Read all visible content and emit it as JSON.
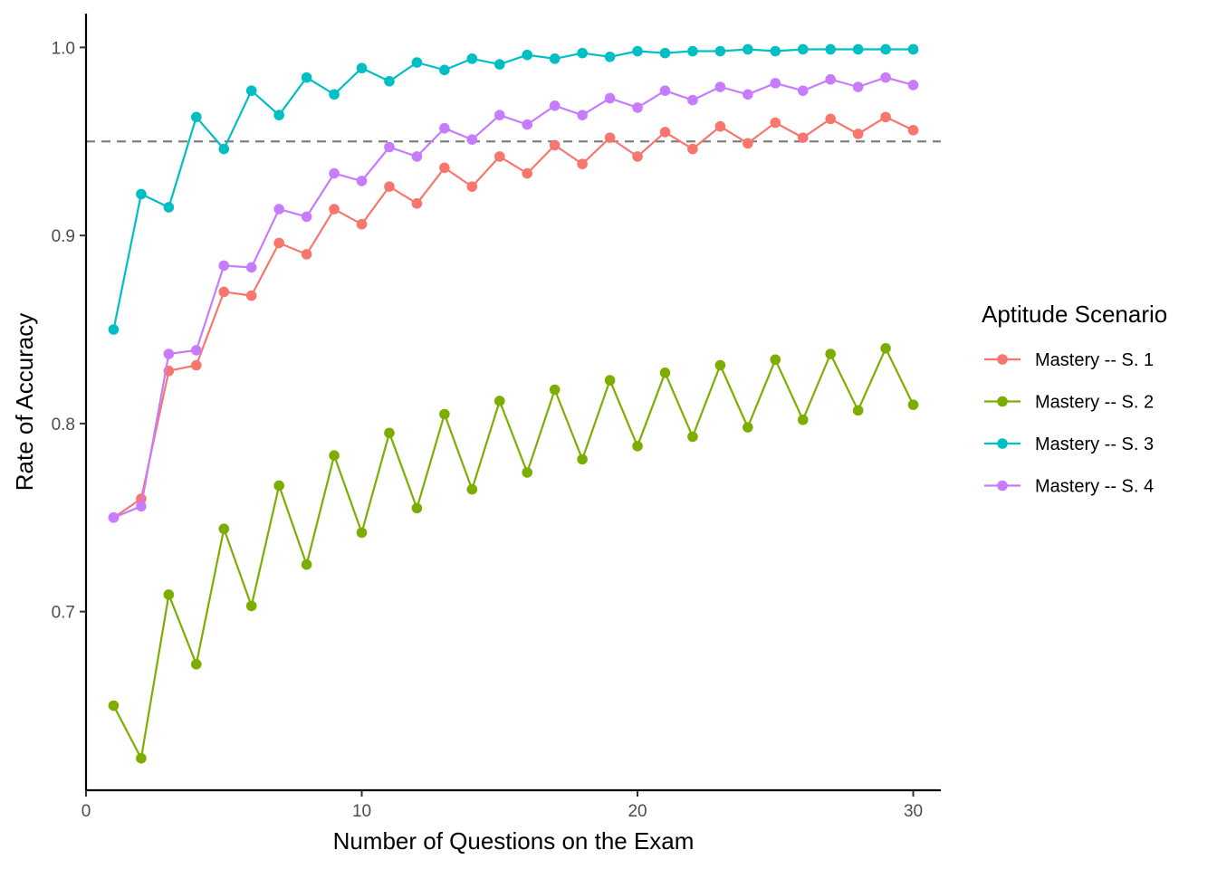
{
  "chart_data": {
    "type": "line",
    "xlabel": "Number of Questions on the Exam",
    "ylabel": "Rate of Accuracy",
    "xlim": [
      0,
      31
    ],
    "ylim": [
      0.605,
      1.018
    ],
    "x_ticks": [
      0,
      10,
      20,
      30
    ],
    "x_tick_labels": [
      "0",
      "10",
      "20",
      "30"
    ],
    "y_ticks": [
      0.7,
      0.8,
      0.9,
      1.0
    ],
    "y_tick_labels": [
      "0.7",
      "0.8",
      "0.9",
      "1.0"
    ],
    "grid": false,
    "reference_line": {
      "y": 0.95,
      "style": "dashed",
      "color": "#808080"
    },
    "legend": {
      "title": "Aptitude Scenario",
      "position": "right"
    },
    "x": [
      1,
      2,
      3,
      4,
      5,
      6,
      7,
      8,
      9,
      10,
      11,
      12,
      13,
      14,
      15,
      16,
      17,
      18,
      19,
      20,
      21,
      22,
      23,
      24,
      25,
      26,
      27,
      28,
      29,
      30
    ],
    "series": [
      {
        "name": "Mastery -- S. 1",
        "color": "#F8766D",
        "values": [
          0.75,
          0.76,
          0.828,
          0.831,
          0.87,
          0.868,
          0.896,
          0.89,
          0.914,
          0.906,
          0.926,
          0.917,
          0.936,
          0.926,
          0.942,
          0.933,
          0.948,
          0.938,
          0.952,
          0.942,
          0.955,
          0.946,
          0.958,
          0.949,
          0.96,
          0.952,
          0.962,
          0.954,
          0.963,
          0.956
        ]
      },
      {
        "name": "Mastery -- S. 2",
        "color": "#7CAE00",
        "values": [
          0.65,
          0.622,
          0.709,
          0.672,
          0.744,
          0.703,
          0.767,
          0.725,
          0.783,
          0.742,
          0.795,
          0.755,
          0.805,
          0.765,
          0.812,
          0.774,
          0.818,
          0.781,
          0.823,
          0.788,
          0.827,
          0.793,
          0.831,
          0.798,
          0.834,
          0.802,
          0.837,
          0.807,
          0.84,
          0.81
        ]
      },
      {
        "name": "Mastery -- S. 3",
        "color": "#00BFC4",
        "values": [
          0.85,
          0.922,
          0.915,
          0.963,
          0.946,
          0.977,
          0.964,
          0.984,
          0.975,
          0.989,
          0.982,
          0.992,
          0.988,
          0.994,
          0.991,
          0.996,
          0.994,
          0.997,
          0.995,
          0.998,
          0.997,
          0.998,
          0.998,
          0.999,
          0.998,
          0.999,
          0.999,
          0.999,
          0.999,
          0.999
        ]
      },
      {
        "name": "Mastery -- S. 4",
        "color": "#C77CFF",
        "values": [
          0.75,
          0.756,
          0.837,
          0.839,
          0.884,
          0.883,
          0.914,
          0.91,
          0.933,
          0.929,
          0.947,
          0.942,
          0.957,
          0.951,
          0.964,
          0.959,
          0.969,
          0.964,
          0.973,
          0.968,
          0.977,
          0.972,
          0.979,
          0.975,
          0.981,
          0.977,
          0.983,
          0.979,
          0.984,
          0.98
        ]
      }
    ]
  }
}
